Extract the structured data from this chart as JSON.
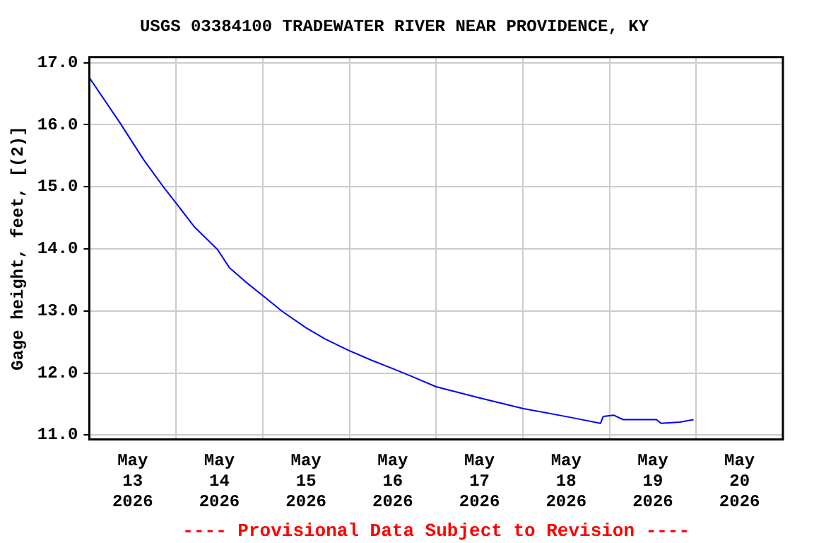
{
  "chart_data": {
    "type": "line",
    "title": "USGS 03384100 TRADEWATER RIVER NEAR PROVIDENCE, KY",
    "ylabel": "Gage height, feet, [(2)]",
    "annotations": [
      "---- Provisional Data Subject to Revision ----"
    ],
    "x": [
      "2026-05-13T00:00",
      "2026-05-13T08:30",
      "2026-05-13T15:00",
      "2026-05-13T20:30",
      "2026-05-14T00:00",
      "2026-05-14T05:00",
      "2026-05-14T11:30",
      "2026-05-14T14:45",
      "2026-05-14T19:15",
      "2026-05-15T00:00",
      "2026-05-15T05:30",
      "2026-05-15T12:00",
      "2026-05-15T17:15",
      "2026-05-16T00:00",
      "2026-05-16T06:00",
      "2026-05-16T12:30",
      "2026-05-16T17:30",
      "2026-05-17T00:00",
      "2026-05-17T12:00",
      "2026-05-18T00:00",
      "2026-05-18T13:45",
      "2026-05-18T21:30",
      "2026-05-18T22:15",
      "2026-05-19T01:15",
      "2026-05-19T03:45",
      "2026-05-19T13:00",
      "2026-05-19T14:15",
      "2026-05-19T19:30",
      "2026-05-19T23:15"
    ],
    "series": [
      {
        "color": "#0000ff",
        "values": [
          16.76,
          16.03,
          15.44,
          15.0,
          14.74,
          14.36,
          13.99,
          13.7,
          13.47,
          13.25,
          12.99,
          12.73,
          12.55,
          12.36,
          12.21,
          12.06,
          11.94,
          11.78,
          11.6,
          11.43,
          11.28,
          11.19,
          11.3,
          11.32,
          11.25,
          11.25,
          11.19,
          11.21,
          11.25
        ]
      }
    ],
    "xlim": [
      "2026-05-13T00:00",
      "2026-05-21T00:00"
    ],
    "xticks": [
      {
        "value": "2026-05-13T12:00",
        "label": "May 13 2026"
      },
      {
        "value": "2026-05-14T00:00",
        "label": null
      },
      {
        "value": "2026-05-14T12:00",
        "label": "May 14 2026"
      },
      {
        "value": "2026-05-15T00:00",
        "label": null
      },
      {
        "value": "2026-05-15T12:00",
        "label": "May 15 2026"
      },
      {
        "value": "2026-05-16T00:00",
        "label": null
      },
      {
        "value": "2026-05-16T12:00",
        "label": "May 16 2026"
      },
      {
        "value": "2026-05-17T00:00",
        "label": null
      },
      {
        "value": "2026-05-17T12:00",
        "label": "May 17 2026"
      },
      {
        "value": "2026-05-18T00:00",
        "label": null
      },
      {
        "value": "2026-05-18T12:00",
        "label": "May 18 2026"
      },
      {
        "value": "2026-05-19T00:00",
        "label": null
      },
      {
        "value": "2026-05-19T12:00",
        "label": "May 19 2026"
      },
      {
        "value": "2026-05-20T00:00",
        "label": null
      },
      {
        "value": "2026-05-20T12:00",
        "label": "May 20 2026"
      }
    ],
    "ylim": [
      10.93,
      17.09
    ],
    "yticks": [
      {
        "value": 11,
        "label": "11.0"
      },
      {
        "value": 12,
        "label": "12.0"
      },
      {
        "value": 13,
        "label": "13.0"
      },
      {
        "value": 14,
        "label": "14.0"
      },
      {
        "value": 15,
        "label": "15.0"
      },
      {
        "value": 16,
        "label": "16.0"
      },
      {
        "value": 17,
        "label": "17.0"
      }
    ],
    "grid": true,
    "legend": false,
    "marker": "none",
    "line_style": "solid"
  }
}
